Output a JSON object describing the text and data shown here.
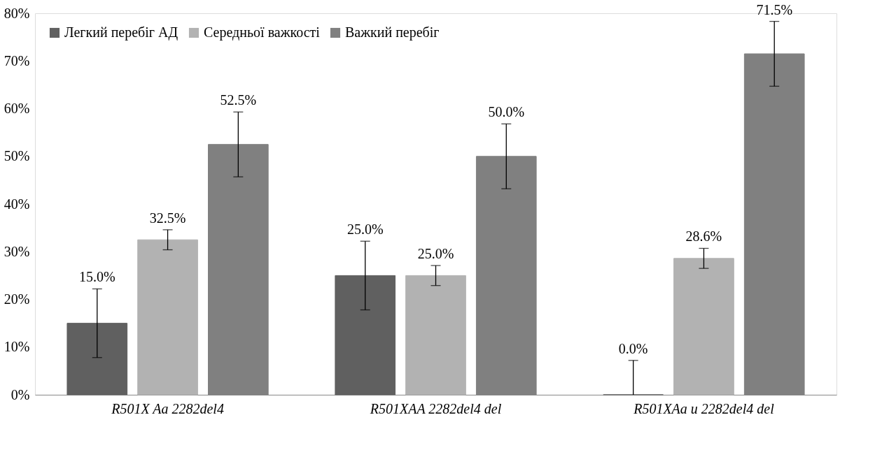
{
  "chart_data": {
    "type": "bar",
    "categories": [
      "R501X Aa 2282del4",
      "R501XAA 2282del4 del",
      "R501XAa и 2282del4 del"
    ],
    "series": [
      {
        "name": "Легкий перебіг АД",
        "color": "#606060",
        "values": [
          15.0,
          25.0,
          0.0
        ],
        "value_labels": [
          "15.0%",
          "25.0%",
          "0.0%"
        ],
        "errors": [
          7.2,
          7.2,
          [
            0,
            7.2
          ]
        ]
      },
      {
        "name": "Середньої важкості",
        "color": "#b2b2b2",
        "values": [
          32.5,
          25.0,
          28.6
        ],
        "value_labels": [
          "32.5%",
          "25.0%",
          "28.6%"
        ],
        "errors": [
          2.1,
          2.1,
          2.1
        ]
      },
      {
        "name": "Важкий перебіг",
        "color": "#808080",
        "values": [
          52.5,
          50.0,
          71.5
        ],
        "value_labels": [
          "52.5%",
          "50.0%",
          "71.5%"
        ],
        "errors": [
          6.8,
          6.8,
          6.8
        ]
      }
    ],
    "ylim": [
      0,
      80
    ],
    "yticks": [
      {
        "value": 0,
        "label": "0%"
      },
      {
        "value": 10,
        "label": "10%"
      },
      {
        "value": 20,
        "label": "20%"
      },
      {
        "value": 30,
        "label": "30%"
      },
      {
        "value": 40,
        "label": "40%"
      },
      {
        "value": 50,
        "label": "50%"
      },
      {
        "value": 60,
        "label": "60%"
      },
      {
        "value": 70,
        "label": "70%"
      },
      {
        "value": 80,
        "label": "80%"
      }
    ],
    "grid": false,
    "legend": "top left"
  }
}
